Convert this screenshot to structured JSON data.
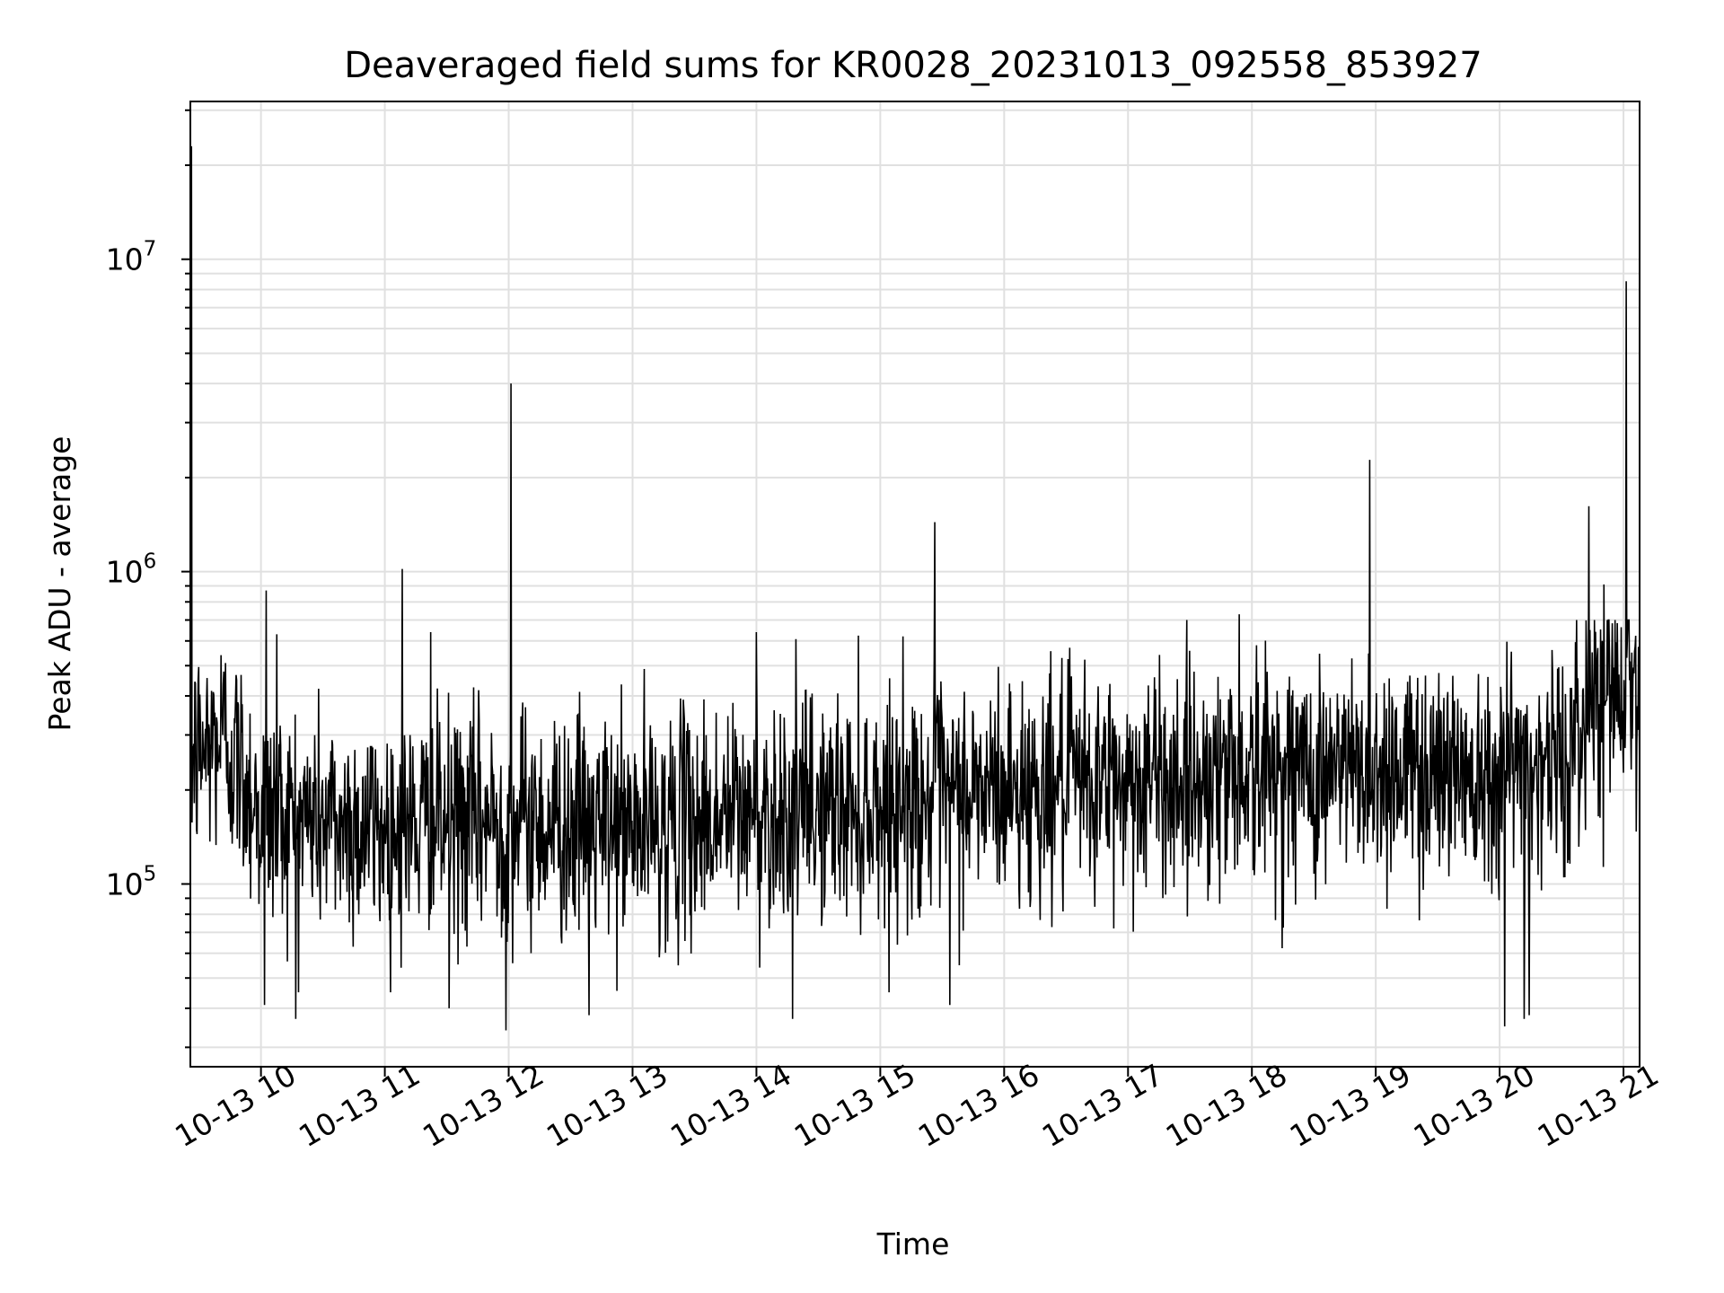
{
  "chart_data": {
    "type": "line",
    "title": "Deaveraged field sums for KR0028_20231013_092558_853927",
    "xlabel": "Time",
    "ylabel": "Peak ADU - average",
    "yscale": "log",
    "ylim": [
      26000,
      32000000
    ],
    "xlim_hours": [
      9.43,
      21.13
    ],
    "grid": true,
    "line_color": "#000000",
    "x_ticks": [
      {
        "hour": 10,
        "label": "10-13 10"
      },
      {
        "hour": 11,
        "label": "10-13 11"
      },
      {
        "hour": 12,
        "label": "10-13 12"
      },
      {
        "hour": 13,
        "label": "10-13 13"
      },
      {
        "hour": 14,
        "label": "10-13 14"
      },
      {
        "hour": 15,
        "label": "10-13 15"
      },
      {
        "hour": 16,
        "label": "10-13 16"
      },
      {
        "hour": 17,
        "label": "10-13 17"
      },
      {
        "hour": 18,
        "label": "10-13 18"
      },
      {
        "hour": 19,
        "label": "10-13 19"
      },
      {
        "hour": 20,
        "label": "10-13 20"
      },
      {
        "hour": 21,
        "label": "10-13 21"
      }
    ],
    "y_ticks": [
      {
        "value": 100000,
        "base": "10",
        "exp": "5"
      },
      {
        "value": 1000000,
        "base": "10",
        "exp": "6"
      },
      {
        "value": 10000000,
        "base": "10",
        "exp": "7"
      }
    ],
    "baseline_trend": [
      {
        "hour": 9.43,
        "value": 250000
      },
      {
        "hour": 9.7,
        "value": 300000
      },
      {
        "hour": 10.0,
        "value": 170000
      },
      {
        "hour": 11.0,
        "value": 150000
      },
      {
        "hour": 12.0,
        "value": 160000
      },
      {
        "hour": 13.0,
        "value": 150000
      },
      {
        "hour": 14.0,
        "value": 170000
      },
      {
        "hour": 15.0,
        "value": 180000
      },
      {
        "hour": 16.0,
        "value": 200000
      },
      {
        "hour": 17.0,
        "value": 210000
      },
      {
        "hour": 18.0,
        "value": 230000
      },
      {
        "hour": 19.0,
        "value": 230000
      },
      {
        "hour": 20.0,
        "value": 240000
      },
      {
        "hour": 20.6,
        "value": 250000
      },
      {
        "hour": 20.75,
        "value": 430000
      },
      {
        "hour": 21.13,
        "value": 450000
      }
    ],
    "spikes": [
      {
        "hour": 9.44,
        "value": 23000000
      },
      {
        "hour": 10.04,
        "value": 870000
      },
      {
        "hour": 10.13,
        "value": 630000
      },
      {
        "hour": 11.14,
        "value": 1020000
      },
      {
        "hour": 11.37,
        "value": 640000
      },
      {
        "hour": 12.02,
        "value": 4000000
      },
      {
        "hour": 14.0,
        "value": 640000
      },
      {
        "hour": 15.44,
        "value": 1440000
      },
      {
        "hour": 17.9,
        "value": 730000
      },
      {
        "hour": 18.95,
        "value": 2280000
      },
      {
        "hour": 20.72,
        "value": 1620000
      },
      {
        "hour": 20.84,
        "value": 910000
      },
      {
        "hour": 21.02,
        "value": 8500000
      }
    ],
    "dips": [
      {
        "hour": 10.03,
        "value": 41000
      },
      {
        "hour": 10.28,
        "value": 37000
      },
      {
        "hour": 11.52,
        "value": 40000
      },
      {
        "hour": 11.98,
        "value": 34000
      },
      {
        "hour": 12.65,
        "value": 38000
      },
      {
        "hour": 14.29,
        "value": 37000
      },
      {
        "hour": 15.56,
        "value": 41000
      },
      {
        "hour": 20.04,
        "value": 35000
      },
      {
        "hour": 20.2,
        "value": 37000
      },
      {
        "hour": 20.24,
        "value": 38000
      }
    ],
    "noise_spread_decades": 0.33
  }
}
